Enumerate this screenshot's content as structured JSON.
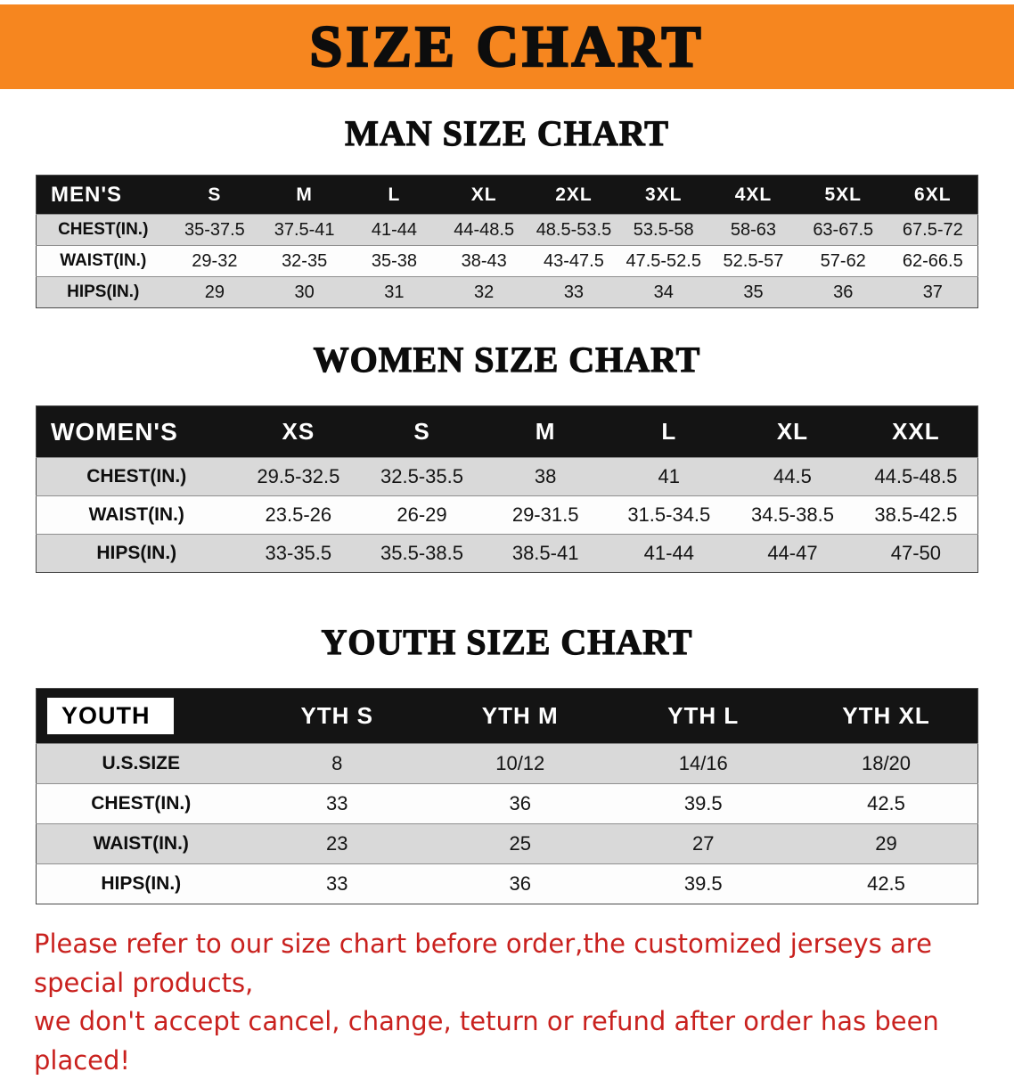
{
  "banner": {
    "title": "SIZE CHART"
  },
  "colors": {
    "banner_orange": "#F6861F",
    "notice_red": "#C9211E",
    "header_black": "#141414",
    "row_gray": "#D9D9D9"
  },
  "sections": {
    "men": {
      "heading": "MAN SIZE CHART",
      "table": {
        "header": [
          "MEN'S",
          "S",
          "M",
          "L",
          "XL",
          "2XL",
          "3XL",
          "4XL",
          "5XL",
          "6XL"
        ],
        "rows": [
          [
            "CHEST(IN.)",
            "35-37.5",
            "37.5-41",
            "41-44",
            "44-48.5",
            "48.5-53.5",
            "53.5-58",
            "58-63",
            "63-67.5",
            "67.5-72"
          ],
          [
            "WAIST(IN.)",
            "29-32",
            "32-35",
            "35-38",
            "38-43",
            "43-47.5",
            "47.5-52.5",
            "52.5-57",
            "57-62",
            "62-66.5"
          ],
          [
            "HIPS(IN.)",
            "29",
            "30",
            "31",
            "32",
            "33",
            "34",
            "35",
            "36",
            "37"
          ]
        ]
      }
    },
    "women": {
      "heading": "WOMEN SIZE CHART",
      "table": {
        "header": [
          "WOMEN'S",
          "XS",
          "S",
          "M",
          "L",
          "XL",
          "XXL"
        ],
        "rows": [
          [
            "CHEST(IN.)",
            "29.5-32.5",
            "32.5-35.5",
            "38",
            "41",
            "44.5",
            "44.5-48.5"
          ],
          [
            "WAIST(IN.)",
            "23.5-26",
            "26-29",
            "29-31.5",
            "31.5-34.5",
            "34.5-38.5",
            "38.5-42.5"
          ],
          [
            "HIPS(IN.)",
            "33-35.5",
            "35.5-38.5",
            "38.5-41",
            "41-44",
            "44-47",
            "47-50"
          ]
        ]
      }
    },
    "youth": {
      "heading": "YOUTH SIZE CHART",
      "table": {
        "header": [
          "YOUTH",
          "YTH S",
          "YTH M",
          "YTH L",
          "YTH XL"
        ],
        "rows": [
          [
            "U.S.SIZE",
            "8",
            "10/12",
            "14/16",
            "18/20"
          ],
          [
            "CHEST(IN.)",
            "33",
            "36",
            "39.5",
            "42.5"
          ],
          [
            "WAIST(IN.)",
            "23",
            "25",
            "27",
            "29"
          ],
          [
            "HIPS(IN.)",
            "33",
            "36",
            "39.5",
            "42.5"
          ]
        ]
      }
    }
  },
  "notice": {
    "line1": "Please refer to our size chart before order,the customized jerseys are special products,",
    "line2": "we don't accept cancel, change, teturn or refund after order has been placed!"
  }
}
